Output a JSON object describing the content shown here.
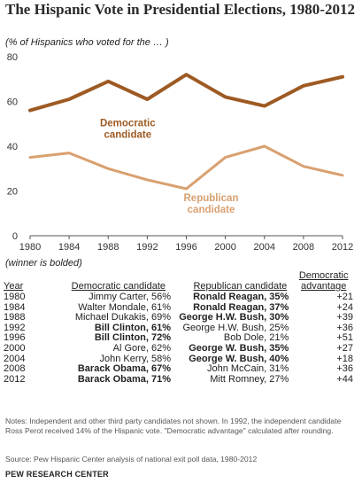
{
  "chart_data": {
    "type": "line",
    "title": "The Hispanic Vote in Presidential Elections, 1980-2012",
    "subtitle": "(% of Hispanics who voted for the … )",
    "x": [
      1980,
      1984,
      1988,
      1992,
      1996,
      2000,
      2004,
      2008,
      2012
    ],
    "x_ticks": [
      "1980",
      "1984",
      "1988",
      "1992",
      "1996",
      "2000",
      "2004",
      "2008",
      "2012"
    ],
    "y_ticks": [
      "0",
      "20",
      "40",
      "60",
      "80"
    ],
    "ylim": [
      0,
      80
    ],
    "grid": false,
    "series": [
      {
        "name": "Democratic candidate",
        "name_lines": [
          "Democratic",
          "candidate"
        ],
        "color": "#9e5a23",
        "values": [
          56,
          61,
          69,
          61,
          72,
          62,
          58,
          67,
          71
        ]
      },
      {
        "name": "Republican candidate",
        "name_lines": [
          "Republican",
          "candidate"
        ],
        "color": "#d9a070",
        "values": [
          35,
          37,
          30,
          25,
          21,
          35,
          40,
          31,
          27
        ]
      }
    ]
  },
  "winner_note": "(winner is bolded)",
  "table": {
    "headers": {
      "year": "Year",
      "dem": "Democratic candidate",
      "rep": "Republican candidate",
      "adv_line1": "Democratic",
      "adv_line2": "advantage"
    },
    "rows": [
      {
        "year": "1980",
        "dem": "Jimmy Carter, 56%",
        "rep": "Ronald Reagan, 35%",
        "adv": "+21",
        "winner": "rep"
      },
      {
        "year": "1984",
        "dem": "Walter Mondale, 61%",
        "rep": "Ronald Reagan, 37%",
        "adv": "+24",
        "winner": "rep"
      },
      {
        "year": "1988",
        "dem": "Michael Dukakis, 69%",
        "rep": "George H.W. Bush, 30%",
        "adv": "+39",
        "winner": "rep"
      },
      {
        "year": "1992",
        "dem": "Bill Clinton, 61%",
        "rep": "George H.W. Bush, 25%",
        "adv": "+36",
        "winner": "dem"
      },
      {
        "year": "1996",
        "dem": "Bill Clinton, 72%",
        "rep": "Bob Dole, 21%",
        "adv": "+51",
        "winner": "dem"
      },
      {
        "year": "2000",
        "dem": "Al Gore, 62%",
        "rep": "George W. Bush, 35%",
        "adv": "+27",
        "winner": "rep"
      },
      {
        "year": "2004",
        "dem": "John Kerry, 58%",
        "rep": "George W. Bush, 40%",
        "adv": "+18",
        "winner": "rep"
      },
      {
        "year": "2008",
        "dem": "Barack Obama, 67%",
        "rep": "John McCain, 31%",
        "adv": "+36",
        "winner": "dem"
      },
      {
        "year": "2012",
        "dem": "Barack Obama, 71%",
        "rep": "Mitt Romney, 27%",
        "adv": "+44",
        "winner": "dem"
      }
    ]
  },
  "notes": "Notes: Independent and other third party candidates not shown. In 1992, the independent candidate Ross Perot received 14% of the Hispanic vote. \"Democratic advantage\" calculated after rounding.",
  "source": "Source: Pew Hispanic Center analysis of national exit poll data, 1980-2012",
  "organization": "PEW RESEARCH CENTER"
}
